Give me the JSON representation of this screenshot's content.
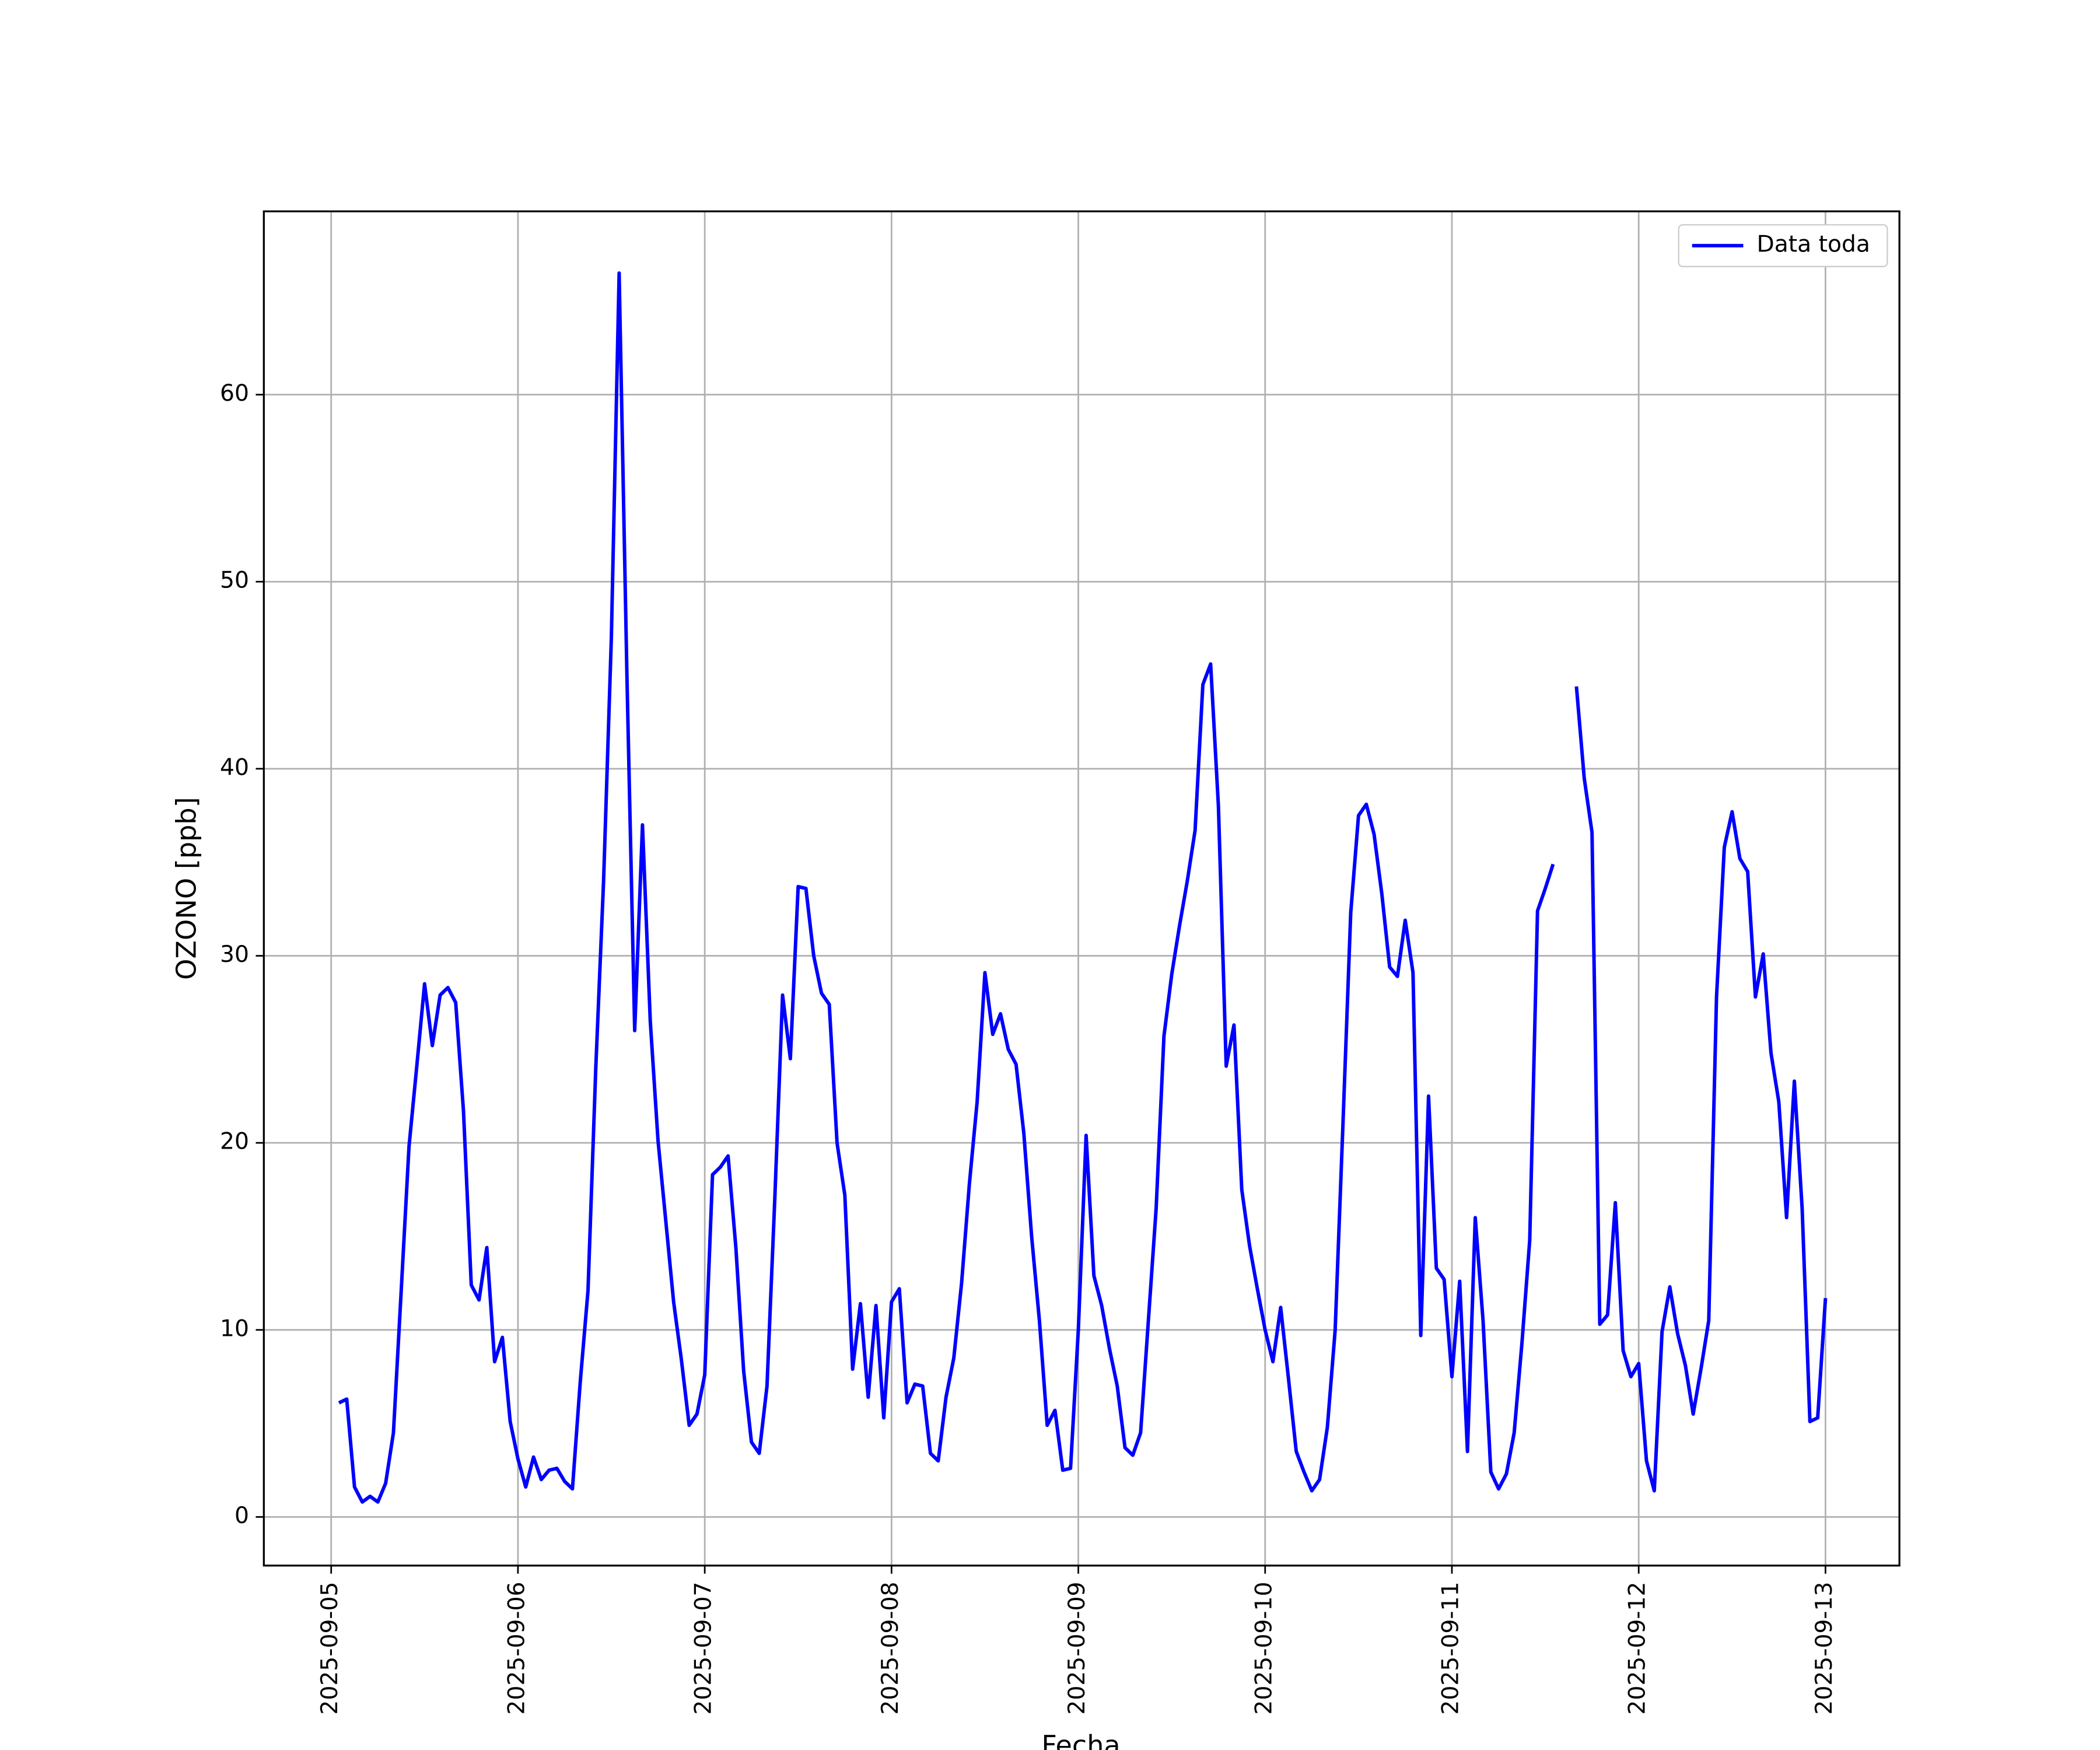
{
  "chart_data": {
    "type": "line",
    "x_label": "Fecha",
    "y_label": "OZONO [ppb]",
    "x": [
      1,
      2,
      3,
      4,
      5,
      6,
      7,
      8,
      9,
      10,
      11,
      12,
      13,
      14,
      15,
      16,
      17,
      18,
      19,
      20,
      21,
      22,
      23,
      24,
      25,
      26,
      27,
      28,
      29,
      30,
      31,
      32,
      33,
      34,
      35,
      36,
      37,
      38,
      39,
      40,
      41,
      42,
      43,
      44,
      45,
      46,
      47,
      48,
      49,
      50,
      51,
      52,
      53,
      54,
      55,
      56,
      57,
      58,
      59,
      60,
      61,
      62,
      63,
      64,
      65,
      66,
      67,
      68,
      69,
      70,
      71,
      72,
      73,
      74,
      75,
      76,
      77,
      78,
      79,
      80,
      81,
      82,
      83,
      84,
      85,
      86,
      87,
      88,
      89,
      90,
      91,
      92,
      93,
      94,
      95,
      96,
      97,
      98,
      99,
      100,
      101,
      102,
      103,
      104,
      105,
      106,
      107,
      108,
      109,
      110,
      111,
      112,
      113,
      114,
      115,
      116,
      117,
      118,
      119,
      120,
      121,
      122,
      123,
      124,
      125,
      126,
      127,
      128,
      129,
      130,
      131,
      132,
      133,
      134,
      135,
      136,
      137,
      138,
      139,
      140,
      141,
      142,
      143,
      144,
      145,
      146,
      147,
      148,
      149,
      150,
      151,
      152,
      153,
      154,
      155,
      156,
      157,
      158,
      159,
      160,
      161,
      162,
      163,
      164,
      165,
      166,
      167,
      168,
      169,
      170,
      171,
      172,
      173,
      174,
      175,
      176,
      177,
      178,
      179,
      180,
      181,
      182,
      183,
      184,
      185,
      186,
      187,
      188,
      189,
      190,
      191,
      192
    ],
    "series": [
      {
        "name": "Data toda",
        "color": "#0000ff",
        "values": [
          6.1,
          6.3,
          1.6,
          0.8,
          1.1,
          0.8,
          1.8,
          4.5,
          12.1,
          19.8,
          24.1,
          28.5,
          25.2,
          27.9,
          28.3,
          27.5,
          21.7,
          12.4,
          11.6,
          14.4,
          8.3,
          9.6,
          5.1,
          3.1,
          1.6,
          3.2,
          2.0,
          2.5,
          2.6,
          1.9,
          1.5,
          7.2,
          12.1,
          24,
          34,
          47,
          66.5,
          45,
          26,
          37,
          26.5,
          20.1,
          15.8,
          11.5,
          8.4,
          4.9,
          5.5,
          7.6,
          18.3,
          18.7,
          19.3,
          14.4,
          7.8,
          4.0,
          3.4,
          7.0,
          17,
          27.9,
          24.5,
          33.7,
          33.6,
          30.0,
          28.0,
          27.4,
          20.0,
          17.2,
          7.9,
          11.4,
          6.4,
          11.3,
          5.3,
          11.5,
          12.2,
          6.1,
          7.1,
          7.0,
          3.4,
          3.0,
          6.4,
          8.5,
          12.5,
          17.8,
          22.2,
          29.1,
          25.8,
          26.9,
          25.0,
          24.2,
          20.5,
          15,
          10.5,
          4.9,
          5.7,
          2.5,
          2.6,
          10,
          20.4,
          12.9,
          11.3,
          9.0,
          7.0,
          3.7,
          3.3,
          4.5,
          10.5,
          16.5,
          25.7,
          29,
          31.6,
          34.0,
          36.7,
          44.5,
          45.6,
          38,
          24.1,
          26.3,
          17.5,
          14.5,
          12.2,
          10,
          8.3,
          11.2,
          7.4,
          3.5,
          2.4,
          1.4,
          2.0,
          4.8,
          10,
          21,
          32.3,
          37.5,
          38.1,
          36.5,
          33.3,
          29.4,
          28.9,
          31.9,
          29.1,
          9.7,
          22.5,
          13.3,
          12.7,
          7.5,
          12.6,
          3.5,
          16.0,
          10.5,
          2.4,
          1.5,
          2.3,
          4.5,
          9.3,
          14.8,
          32.4,
          33.6,
          34.9,
          null,
          null,
          44.4,
          39.5,
          36.6,
          10.3,
          10.8,
          16.8,
          8.9,
          7.5,
          8.2,
          3.0,
          1.4,
          9.9,
          12.3,
          9.8,
          8.1,
          5.5,
          7.9,
          10.5,
          27.8,
          35.8,
          37.7,
          35.2,
          34.5,
          27.8,
          30.1,
          24.8,
          22.2,
          16.0,
          23.3,
          16.5,
          5.1,
          5.3,
          11.7
        ]
      }
    ],
    "xlim": [
      -8.65,
      201.5
    ],
    "xticks": [
      {
        "value": 0,
        "label": "2025-09-05"
      },
      {
        "value": 24,
        "label": "2025-09-06"
      },
      {
        "value": 48,
        "label": "2025-09-07"
      },
      {
        "value": 72,
        "label": "2025-09-08"
      },
      {
        "value": 96,
        "label": "2025-09-09"
      },
      {
        "value": 120,
        "label": "2025-09-10"
      },
      {
        "value": 144,
        "label": "2025-09-11"
      },
      {
        "value": 168,
        "label": "2025-09-12"
      },
      {
        "value": 192,
        "label": "2025-09-13"
      }
    ],
    "ylim": [
      -2.6,
      69.8
    ],
    "yticks": [
      0,
      10,
      20,
      30,
      40,
      50,
      60
    ],
    "grid": true,
    "legend": "upper right"
  }
}
